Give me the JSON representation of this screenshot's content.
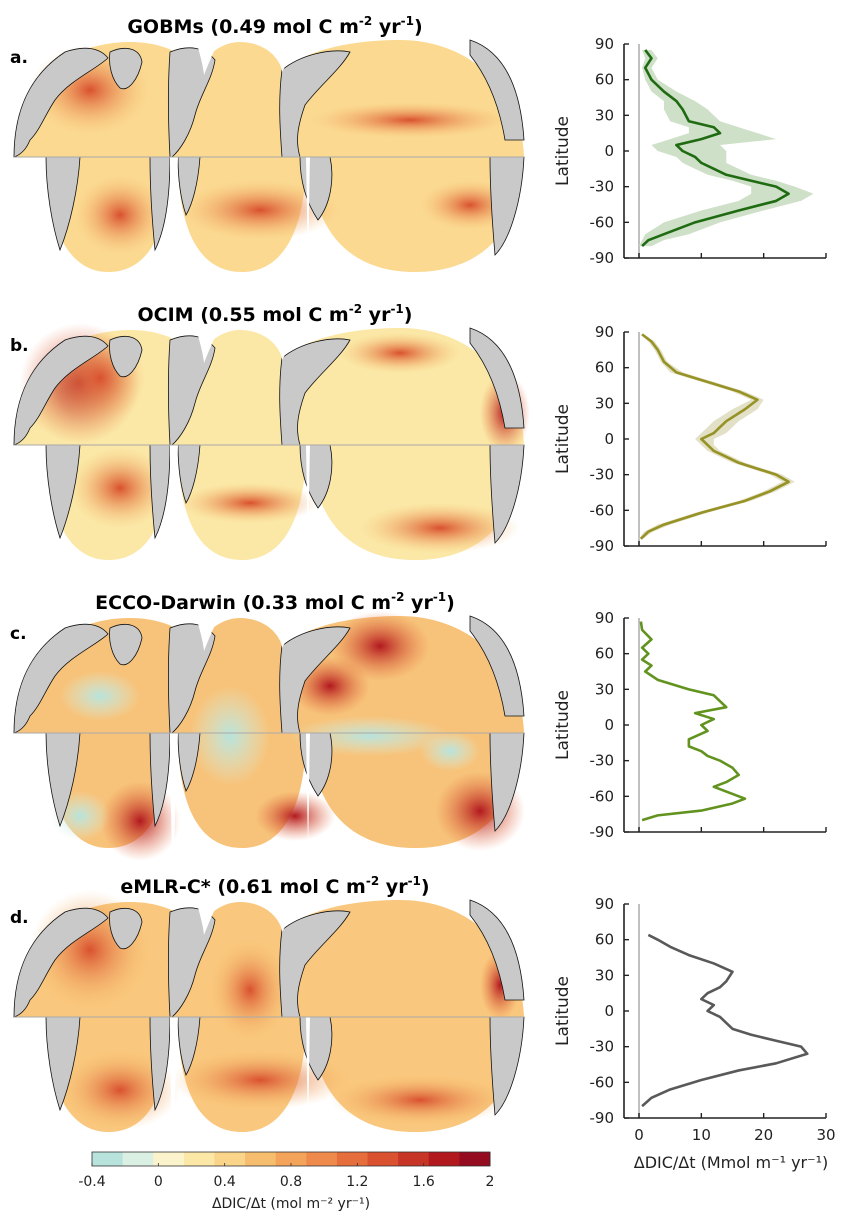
{
  "panels": [
    {
      "letter": "a.",
      "title_main": "GOBMs (0.49 mol C m",
      "sup1": "-2",
      "title_mid": " yr",
      "sup2": "-1",
      "title_end": ")"
    },
    {
      "letter": "b.",
      "title_main": "OCIM (0.55 mol C m",
      "sup1": "-2",
      "title_mid": " yr",
      "sup2": "-1",
      "title_end": ")"
    },
    {
      "letter": "c.",
      "title_main": "ECCO-Darwin (0.33 mol C m",
      "sup1": "-2",
      "title_mid": " yr",
      "sup2": "-1",
      "title_end": ")"
    },
    {
      "letter": "d.",
      "title_main": "eMLR-C* (0.61 mol C m",
      "sup1": "-2",
      "title_mid": " yr",
      "sup2": "-1",
      "title_end": ")"
    }
  ],
  "colorbar": {
    "ticks": [
      "-0.4",
      "0",
      "0.4",
      "0.8",
      "1.2",
      "1.6",
      "2"
    ],
    "label": "ΔDIC/Δt (mol m⁻² yr⁻¹)",
    "colors": [
      "#b7e3dc",
      "#d9f0e2",
      "#fbf3cc",
      "#fbe7a6",
      "#fad489",
      "#f7bd6e",
      "#f4a35b",
      "#ee8a4c",
      "#e66e3c",
      "#d9512f",
      "#c73526",
      "#b2191f",
      "#950b1f"
    ]
  },
  "colors": {
    "land": "#c9c9c9",
    "axis": "#222222",
    "zero_line": "#c0c0c0"
  },
  "chart_data": [
    {
      "type": "line",
      "panel": "a.",
      "xlabel": "ΔDIC/Δt (Mmol m⁻¹ yr⁻¹)",
      "ylabel": "Latitude",
      "xlim": [
        0,
        30
      ],
      "ylim": [
        -90,
        90
      ],
      "yticks": [
        -90,
        -60,
        -30,
        0,
        30,
        60,
        90
      ],
      "color": "#1f6b12",
      "band_color": "#cfe0c8",
      "series": [
        {
          "x": [
            0.5,
            1.5,
            4,
            9,
            16,
            22,
            24,
            22,
            18,
            14,
            12,
            10,
            9,
            7,
            6,
            10,
            13,
            12,
            8,
            7,
            6,
            4,
            2,
            1,
            2,
            1
          ],
          "y": [
            -80,
            -75,
            -70,
            -60,
            -50,
            -42,
            -36,
            -30,
            -25,
            -20,
            -15,
            -10,
            -5,
            0,
            5,
            10,
            15,
            20,
            25,
            35,
            42,
            50,
            60,
            70,
            78,
            85
          ],
          "lower": [
            0,
            0.5,
            1,
            4,
            10,
            16,
            18,
            18,
            15,
            11,
            9,
            7,
            6,
            3,
            2,
            5,
            8,
            8,
            5,
            4,
            4,
            2,
            1,
            0.5,
            1,
            0.5
          ],
          "upper": [
            2,
            4,
            8,
            13,
            20,
            26,
            28,
            25,
            22,
            18,
            16,
            14,
            14,
            14,
            13,
            22,
            19,
            16,
            13,
            11,
            9,
            6,
            3,
            2,
            3,
            2
          ]
        }
      ]
    },
    {
      "type": "line",
      "panel": "b.",
      "xlabel": "ΔDIC/Δt (Mmol m⁻¹ yr⁻¹)",
      "ylabel": "Latitude",
      "xlim": [
        0,
        30
      ],
      "ylim": [
        -90,
        90
      ],
      "yticks": [
        -90,
        -60,
        -30,
        0,
        30,
        60,
        90
      ],
      "color": "#969225",
      "band_color": "#e2e0c6",
      "series": [
        {
          "x": [
            0.3,
            1.5,
            4,
            10,
            17,
            21,
            24,
            22,
            19,
            16,
            14,
            12,
            11,
            10,
            12,
            13,
            14,
            17,
            19,
            16,
            11,
            6,
            4,
            3,
            2,
            0.5
          ],
          "y": [
            -84,
            -78,
            -72,
            -62,
            -52,
            -44,
            -36,
            -30,
            -25,
            -20,
            -15,
            -10,
            -5,
            0,
            5,
            10,
            15,
            25,
            33,
            40,
            48,
            56,
            65,
            75,
            82,
            88
          ],
          "lower": [
            0,
            0.8,
            3,
            9,
            16,
            20,
            23,
            21,
            18,
            15,
            13,
            11,
            10,
            9,
            10,
            11,
            12,
            15,
            18,
            15,
            10,
            5,
            3.5,
            2.5,
            1.5,
            0.2
          ],
          "upper": [
            0.6,
            2.2,
            5,
            11,
            18,
            22,
            25,
            23,
            20,
            17,
            15,
            13,
            12,
            12,
            14,
            15,
            16,
            19,
            20,
            17,
            12,
            7,
            4.5,
            3.5,
            2.5,
            0.8
          ]
        }
      ]
    },
    {
      "type": "line",
      "panel": "c.",
      "xlabel": "ΔDIC/Δt (Mmol m⁻¹ yr⁻¹)",
      "ylabel": "Latitude",
      "xlim": [
        0,
        30
      ],
      "ylim": [
        -90,
        90
      ],
      "yticks": [
        -90,
        -60,
        -30,
        0,
        30,
        60,
        90
      ],
      "color": "#62931f",
      "band_color": "#e0ebd0",
      "series": [
        {
          "x": [
            0.5,
            3,
            10,
            15,
            17,
            14,
            12,
            14,
            16,
            15,
            13,
            11,
            10,
            8,
            8,
            11,
            10,
            12,
            9,
            14,
            12,
            8,
            3,
            1,
            2,
            0.5,
            1.5,
            0.5,
            2,
            0.5,
            0.3
          ],
          "y": [
            -80,
            -76,
            -72,
            -66,
            -62,
            -56,
            -52,
            -48,
            -42,
            -36,
            -30,
            -26,
            -22,
            -18,
            -12,
            -5,
            0,
            5,
            10,
            15,
            25,
            30,
            38,
            45,
            50,
            55,
            60,
            65,
            72,
            80,
            87
          ],
          "lower": [],
          "upper": []
        }
      ]
    },
    {
      "type": "line",
      "panel": "d.",
      "xlabel": "ΔDIC/Δt (Mmol m⁻¹ yr⁻¹)",
      "ylabel": "Latitude",
      "xlim": [
        0,
        30
      ],
      "ylim": [
        -90,
        90
      ],
      "yticks": [
        -90,
        -60,
        -30,
        0,
        30,
        60,
        90
      ],
      "xticks": [
        0,
        10,
        20,
        30
      ],
      "color": "#595959",
      "band_color": "#e0e0e0",
      "series": [
        {
          "x": [
            0.5,
            2,
            5,
            10,
            16,
            22,
            27,
            26,
            22,
            18,
            15,
            14,
            13,
            11,
            12,
            10,
            11,
            13,
            14,
            15,
            12,
            8,
            5,
            3,
            1.5
          ],
          "y": [
            -80,
            -73,
            -66,
            -58,
            -50,
            -44,
            -36,
            -30,
            -25,
            -20,
            -15,
            -10,
            -5,
            0,
            5,
            10,
            15,
            20,
            25,
            33,
            40,
            47,
            54,
            60,
            64
          ],
          "lower": [],
          "upper": []
        }
      ]
    }
  ]
}
